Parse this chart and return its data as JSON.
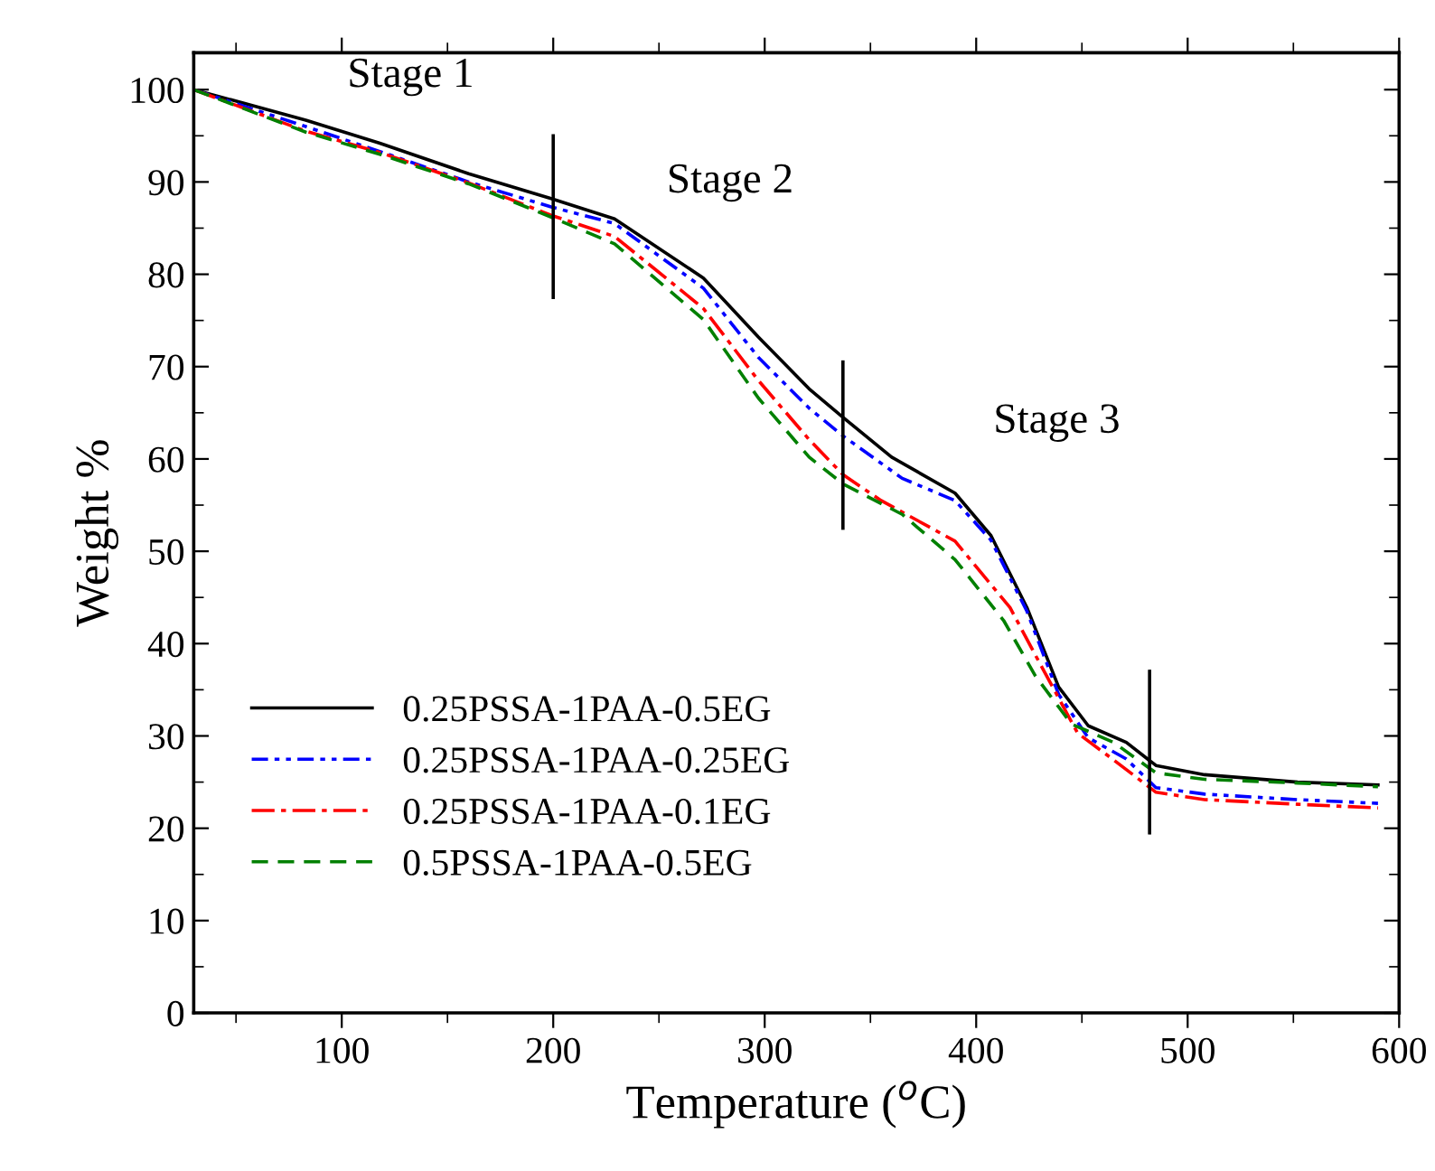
{
  "chart_data": {
    "type": "line",
    "xlabel": "Temperature ($^{o}$C)",
    "ylabel": "Weight %",
    "xlim": [
      30,
      600
    ],
    "xticks": [
      {
        "value": 50,
        "label": null
      },
      100,
      {
        "value": 150,
        "label": null
      },
      200,
      {
        "value": 250,
        "label": null
      },
      300,
      {
        "value": 350,
        "label": null
      },
      400,
      {
        "value": 450,
        "label": null
      },
      500,
      {
        "value": 550,
        "label": null
      },
      600
    ],
    "ylim": [
      0,
      104
    ],
    "yticks": [
      0,
      {
        "value": 5,
        "label": null
      },
      10,
      {
        "value": 15,
        "label": null
      },
      20,
      {
        "value": 25,
        "label": null
      },
      30,
      {
        "value": 35,
        "label": null
      },
      40,
      {
        "value": 45,
        "label": null
      },
      50,
      {
        "value": 55,
        "label": null
      },
      60,
      {
        "value": 65,
        "label": null
      },
      70,
      {
        "value": 75,
        "label": null
      },
      80,
      {
        "value": 85,
        "label": null
      },
      90,
      {
        "value": 95,
        "label": null
      },
      100
    ],
    "grid": false,
    "legend": "bottom left",
    "marker": "none",
    "series": [
      {
        "name": "0.25PSSA-1PAA-0.5EG",
        "color": "#000000",
        "line_style": "solid",
        "x": [
          30,
          83,
          118,
          160,
          199,
          229,
          271,
          297,
          321,
          337,
          360,
          390,
          407,
          424,
          439,
          453,
          471,
          485,
          508,
          552,
          590
        ],
        "values": [
          100,
          96.7,
          94.2,
          90.9,
          88.2,
          86.0,
          79.6,
          73.2,
          67.6,
          64.5,
          60.2,
          56.3,
          51.7,
          43.9,
          35.3,
          31.1,
          29.3,
          26.8,
          25.8,
          25.0,
          24.7
        ]
      },
      {
        "name": "0.25PSSA-1PAA-0.25EG",
        "color": "#0000ff",
        "line_style": "dashdotdot",
        "x": [
          30,
          83,
          118,
          160,
          199,
          229,
          271,
          297,
          321,
          337,
          365,
          390,
          407,
          424,
          439,
          453,
          471,
          485,
          508,
          552,
          590
        ],
        "values": [
          100,
          96.0,
          93.3,
          90.0,
          87.3,
          85.5,
          78.5,
          71.0,
          65.5,
          62.5,
          57.9,
          55.5,
          51.2,
          43.5,
          34.5,
          29.8,
          27.5,
          24.4,
          23.7,
          23.1,
          22.7
        ]
      },
      {
        "name": "0.25PSSA-1PAA-0.1EG",
        "color": "#ff0000",
        "line_style": "dashdot",
        "x": [
          30,
          83,
          118,
          160,
          199,
          229,
          271,
          297,
          321,
          337,
          355,
          390,
          416,
          430,
          448,
          465,
          485,
          508,
          552,
          590
        ],
        "values": [
          100,
          95.5,
          93.2,
          89.9,
          86.4,
          84.1,
          76.3,
          68.5,
          62.1,
          58.3,
          55.5,
          51.1,
          43.9,
          37.9,
          30.3,
          27.4,
          23.9,
          23.1,
          22.6,
          22.2
        ]
      },
      {
        "name": "0.5PSSA-1PAA-0.5EG",
        "color": "#008000",
        "line_style": "dashed",
        "x": [
          30,
          83,
          118,
          160,
          199,
          229,
          271,
          297,
          321,
          337,
          365,
          390,
          413,
          428,
          445,
          465,
          485,
          508,
          552,
          590
        ],
        "values": [
          100,
          95.4,
          93.0,
          89.8,
          86.2,
          83.3,
          75.1,
          66.6,
          60.2,
          57.3,
          54.0,
          49.1,
          42.5,
          36.5,
          31.3,
          29.3,
          26.0,
          25.3,
          24.9,
          24.5
        ]
      },
      {
        "color": "#000000",
        "line_style": "solid",
        "x": [
          200,
          200
        ],
        "values": [
          77.5,
          95
        ]
      },
      {
        "color": "#000000",
        "line_style": "solid",
        "x": [
          337,
          337
        ],
        "values": [
          52.5,
          70.5
        ]
      },
      {
        "color": "#000000",
        "line_style": "solid",
        "x": [
          482,
          482
        ],
        "values": [
          19.5,
          37
        ]
      }
    ],
    "annotations": [
      "Stage 1",
      "Stage 2",
      "Stage 3"
    ]
  }
}
